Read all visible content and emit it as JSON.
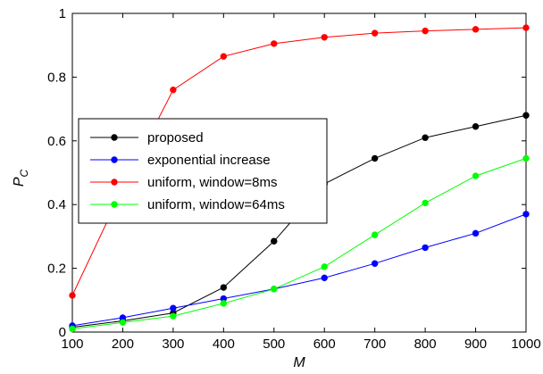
{
  "chart_data": {
    "type": "line",
    "x": [
      100,
      200,
      300,
      400,
      500,
      600,
      700,
      800,
      900,
      1000
    ],
    "xlabel": "M",
    "ylabel": "P",
    "ylabel_sub": "C",
    "xlim": [
      100,
      1000
    ],
    "ylim": [
      0,
      1
    ],
    "xticks": [
      100,
      200,
      300,
      400,
      500,
      600,
      700,
      800,
      900,
      1000
    ],
    "yticks": [
      0,
      0.2,
      0.4,
      0.6,
      0.8,
      1
    ],
    "ytick_labels": [
      "0",
      "0.2",
      "0.4",
      "0.6",
      "0.8",
      "1"
    ],
    "grid": false,
    "legend_position": "center-left",
    "series": [
      {
        "name": "proposed",
        "color": "#000000",
        "values": [
          0.015,
          0.035,
          0.06,
          0.14,
          0.285,
          0.465,
          0.545,
          0.61,
          0.645,
          0.68
        ]
      },
      {
        "name": "exponential increase",
        "color": "#0000ff",
        "values": [
          0.02,
          0.045,
          0.075,
          0.105,
          0.135,
          0.17,
          0.215,
          0.265,
          0.31,
          0.37
        ]
      },
      {
        "name": "uniform, window=8ms",
        "color": "#ff0000",
        "values": [
          0.115,
          0.45,
          0.76,
          0.865,
          0.905,
          0.925,
          0.938,
          0.945,
          0.95,
          0.955
        ]
      },
      {
        "name": "uniform, window=64ms",
        "color": "#00ff00",
        "values": [
          0.01,
          0.03,
          0.05,
          0.09,
          0.135,
          0.205,
          0.305,
          0.405,
          0.49,
          0.545
        ]
      }
    ]
  }
}
